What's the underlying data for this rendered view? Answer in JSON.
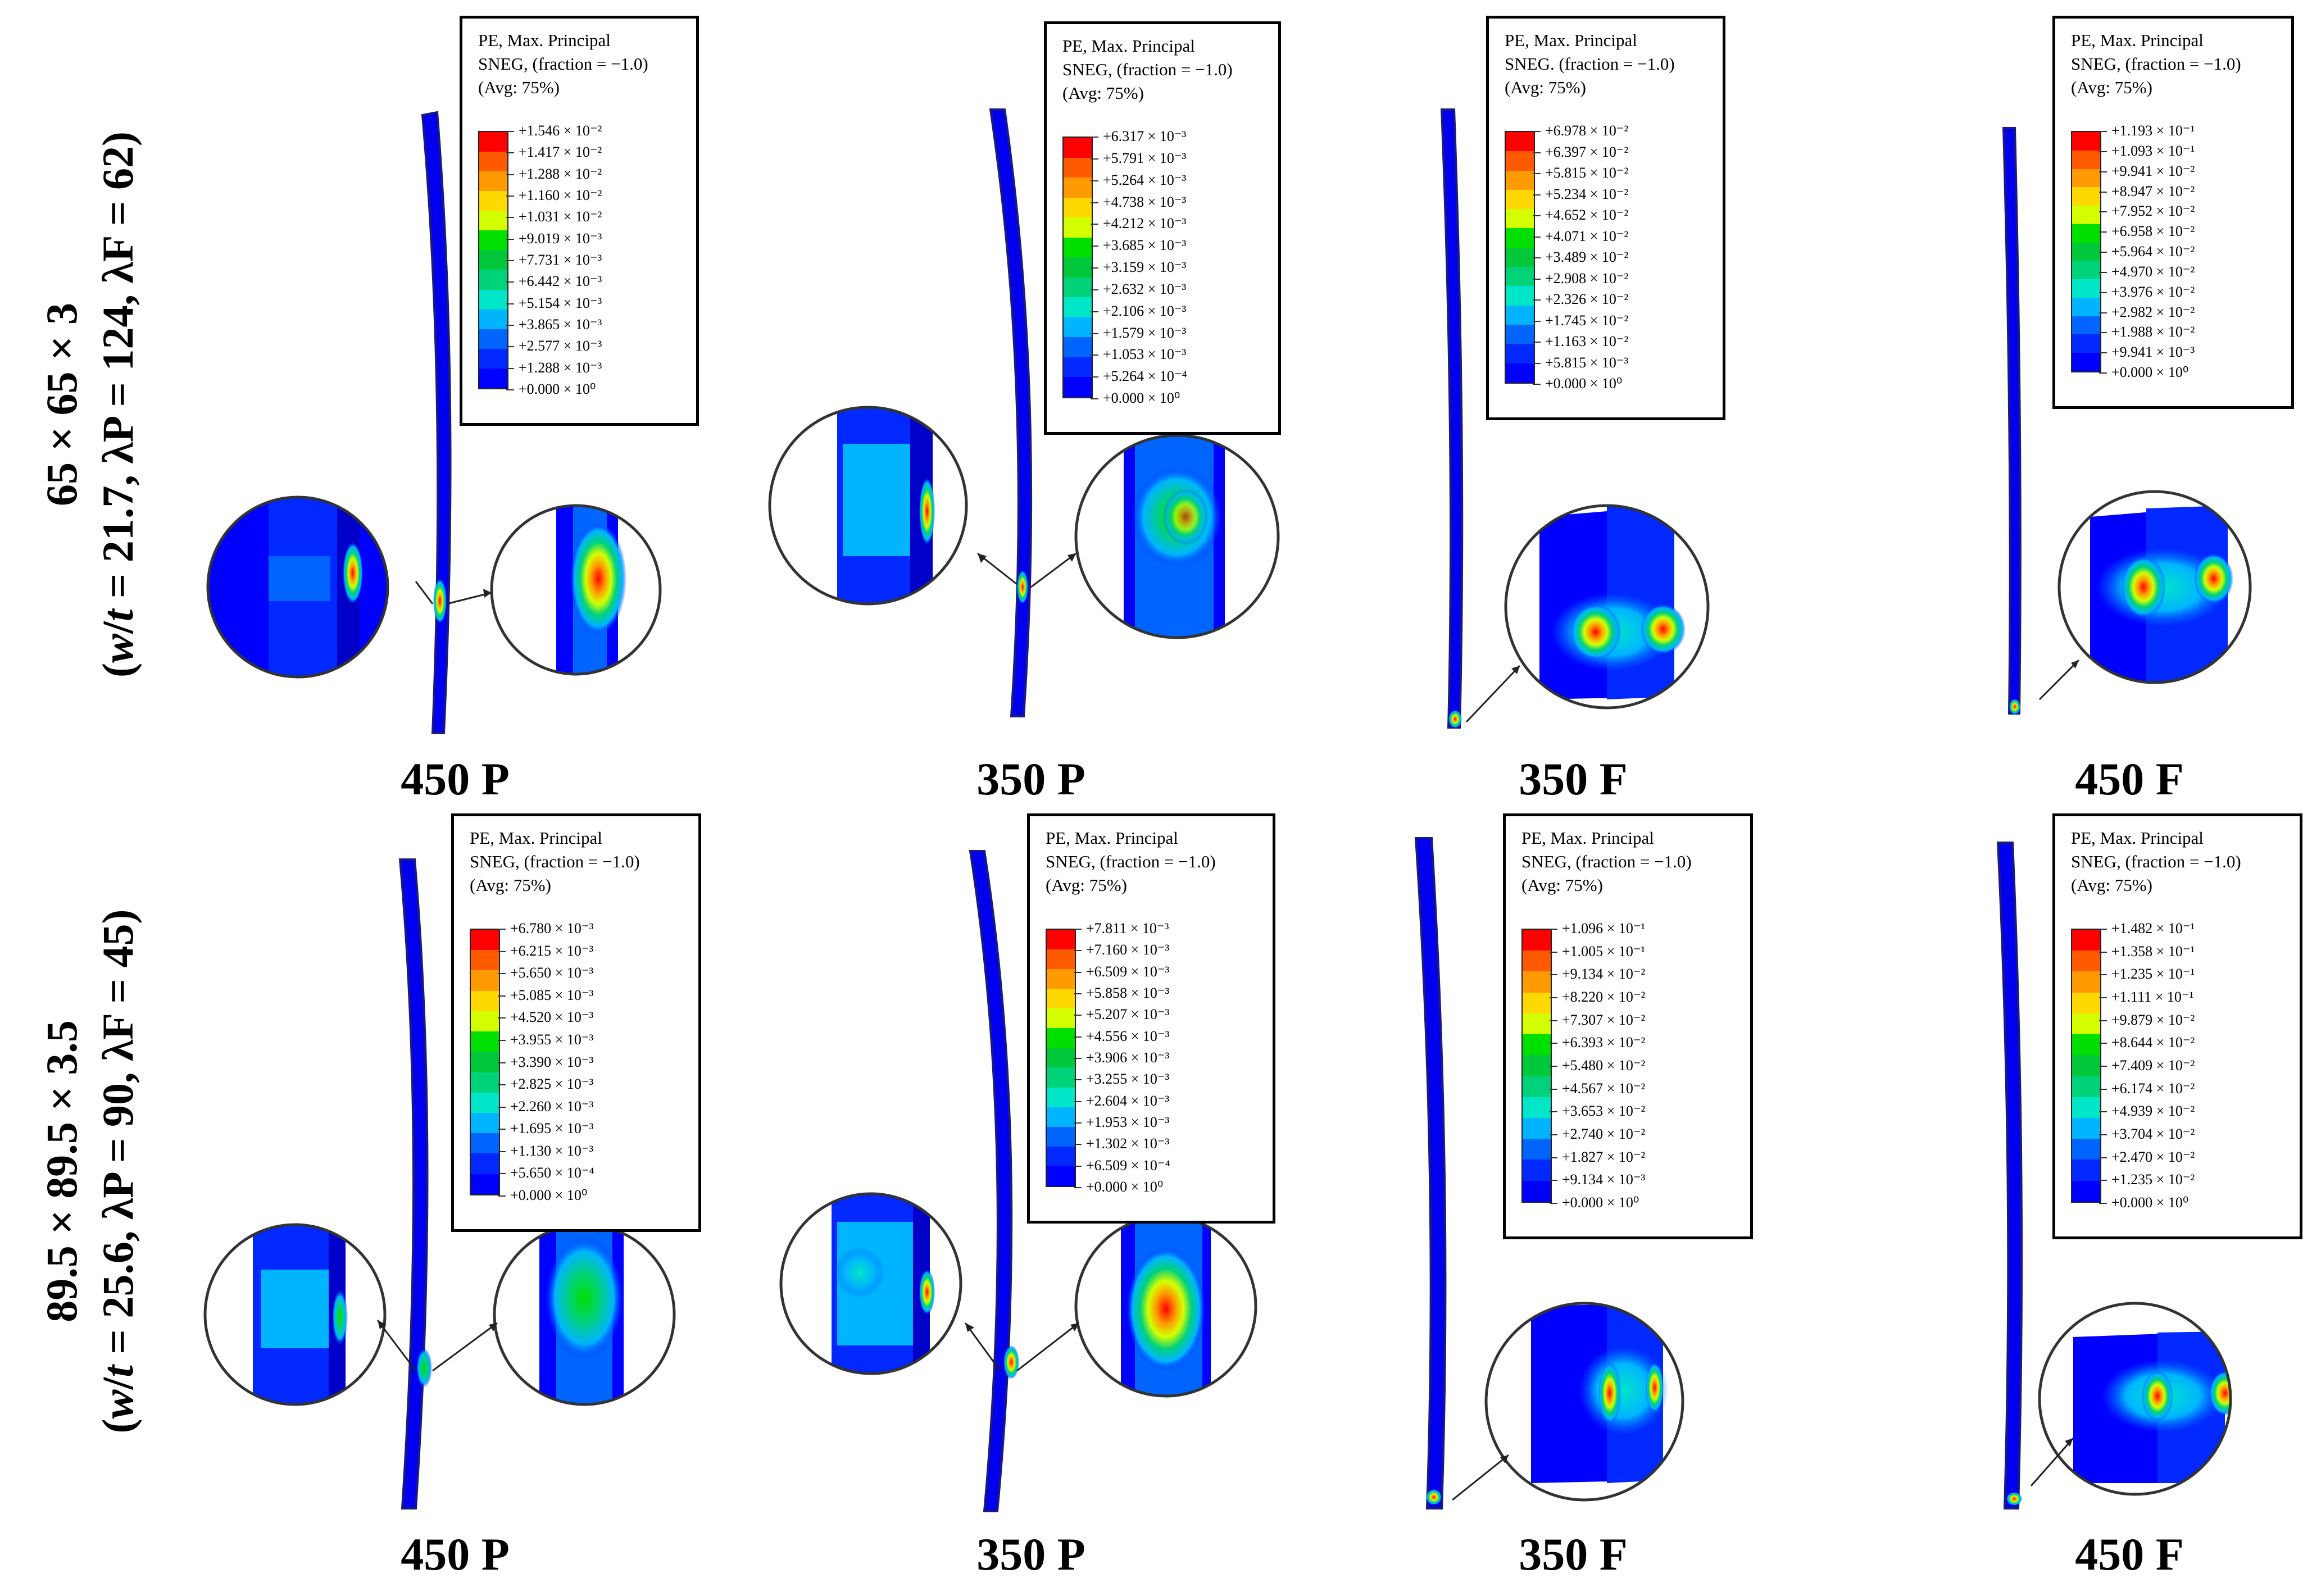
{
  "rows": [
    {
      "section_line1": "65 × 65 × 3",
      "section_line2_prefix": "(",
      "section_w": "w",
      "section_slash": "/",
      "section_t": "t",
      "section_rest": " = 21.7, λP = 124, λF = 62)"
    },
    {
      "section_line1": "89.5 × 89.5 × 3.5",
      "section_line2_prefix": "(",
      "section_w": "w",
      "section_slash": "/",
      "section_t": "t",
      "section_rest": " = 25.6, λP = 90, λF = 45)"
    }
  ],
  "legend_header": [
    "PE, Max. Principal",
    "SNEG, (fraction = −1.0)",
    "(Avg: 75%)"
  ],
  "legend_header_alt": [
    "PE, Max. Principal",
    "SNEG. (fraction = −1.0)",
    "(Avg: 75%)"
  ],
  "colormap": [
    "#ff0000",
    "#ff5a00",
    "#ff9a00",
    "#ffd800",
    "#d4ff00",
    "#00e000",
    "#00c83a",
    "#00d27a",
    "#00e6c8",
    "#00b4ff",
    "#0064ff",
    "#0028ff",
    "#0000ff"
  ],
  "panels": [
    {
      "caption": "450 P",
      "legend": [
        "+1.546 × 10⁻²",
        "+1.417 × 10⁻²",
        "+1.288 × 10⁻²",
        "+1.160 × 10⁻²",
        "+1.031 × 10⁻²",
        "+9.019 × 10⁻³",
        "+7.731 × 10⁻³",
        "+6.442 × 10⁻³",
        "+5.154 × 10⁻³",
        "+3.865 × 10⁻³",
        "+2.577 × 10⁻³",
        "+1.288 × 10⁻³",
        "+0.000 × 10⁰"
      ]
    },
    {
      "caption": "350 P",
      "legend": [
        "+6.317 × 10⁻³",
        "+5.791 × 10⁻³",
        "+5.264 × 10⁻³",
        "+4.738 × 10⁻³",
        "+4.212 × 10⁻³",
        "+3.685 × 10⁻³",
        "+3.159 × 10⁻³",
        "+2.632 × 10⁻³",
        "+2.106 × 10⁻³",
        "+1.579 × 10⁻³",
        "+1.053 × 10⁻³",
        "+5.264 × 10⁻⁴",
        "+0.000 × 10⁰"
      ]
    },
    {
      "caption": "350 F",
      "legend": [
        "+6.978 × 10⁻²",
        "+6.397 × 10⁻²",
        "+5.815 × 10⁻²",
        "+5.234 × 10⁻²",
        "+4.652 × 10⁻²",
        "+4.071 × 10⁻²",
        "+3.489 × 10⁻²",
        "+2.908 × 10⁻²",
        "+2.326 × 10⁻²",
        "+1.745 × 10⁻²",
        "+1.163 × 10⁻²",
        "+5.815 × 10⁻³",
        "+0.000 × 10⁰"
      ]
    },
    {
      "caption": "450 F",
      "legend": [
        "+1.193 × 10⁻¹",
        "+1.093 × 10⁻¹",
        "+9.941 × 10⁻²",
        "+8.947 × 10⁻²",
        "+7.952 × 10⁻²",
        "+6.958 × 10⁻²",
        "+5.964 × 10⁻²",
        "+4.970 × 10⁻²",
        "+3.976 × 10⁻²",
        "+2.982 × 10⁻²",
        "+1.988 × 10⁻²",
        "+9.941 × 10⁻³",
        "+0.000 × 10⁰"
      ]
    },
    {
      "caption": "450 P",
      "legend": [
        "+6.780 × 10⁻³",
        "+6.215 × 10⁻³",
        "+5.650 × 10⁻³",
        "+5.085 × 10⁻³",
        "+4.520 × 10⁻³",
        "+3.955 × 10⁻³",
        "+3.390 × 10⁻³",
        "+2.825 × 10⁻³",
        "+2.260 × 10⁻³",
        "+1.695 × 10⁻³",
        "+1.130 × 10⁻³",
        "+5.650 × 10⁻⁴",
        "+0.000 × 10⁰"
      ]
    },
    {
      "caption": "350 P",
      "legend": [
        "+7.811 × 10⁻³",
        "+7.160 × 10⁻³",
        "+6.509 × 10⁻³",
        "+5.858 × 10⁻³",
        "+5.207 × 10⁻³",
        "+4.556 × 10⁻³",
        "+3.906 × 10⁻³",
        "+3.255 × 10⁻³",
        "+2.604 × 10⁻³",
        "+1.953 × 10⁻³",
        "+1.302 × 10⁻³",
        "+6.509 × 10⁻⁴",
        "+0.000 × 10⁰"
      ]
    },
    {
      "caption": "350 F",
      "legend": [
        "+1.096 × 10⁻¹",
        "+1.005 × 10⁻¹",
        "+9.134 × 10⁻²",
        "+8.220 × 10⁻²",
        "+7.307 × 10⁻²",
        "+6.393 × 10⁻²",
        "+5.480 × 10⁻²",
        "+4.567 × 10⁻²",
        "+3.653 × 10⁻²",
        "+2.740 × 10⁻²",
        "+1.827 × 10⁻²",
        "+9.134 × 10⁻³",
        "+0.000 × 10⁰"
      ]
    },
    {
      "caption": "450 F",
      "legend": [
        "+1.482 × 10⁻¹",
        "+1.358 × 10⁻¹",
        "+1.235 × 10⁻¹",
        "+1.111 × 10⁻¹",
        "+9.879 × 10⁻²",
        "+8.644 × 10⁻²",
        "+7.409 × 10⁻²",
        "+6.174 × 10⁻²",
        "+4.939 × 10⁻²",
        "+3.704 × 10⁻²",
        "+2.470 × 10⁻²",
        "+1.235 × 10⁻²",
        "+0.000 × 10⁰"
      ]
    }
  ]
}
